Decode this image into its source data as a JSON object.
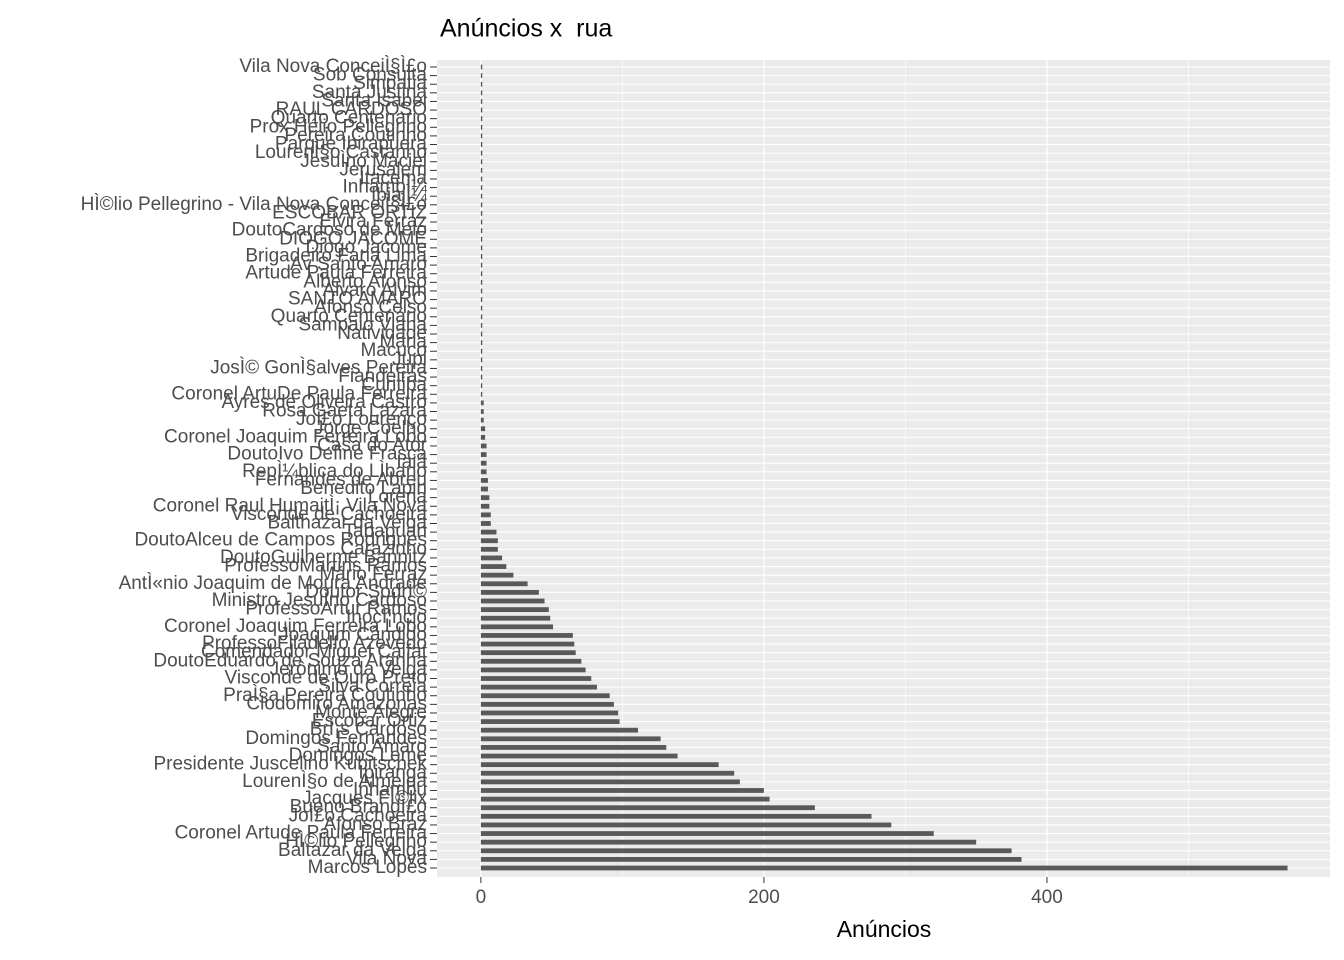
{
  "chart_data": {
    "type": "barh",
    "title": "Anúncios x  rua",
    "xlabel": "Anúncios",
    "categories": [
      "Vila Nova ConceiÌ§Ì£o",
      "Sob Consulta",
      "Simpatia",
      "Santa Justina",
      "Santa Isabel",
      "RAUL CARDOSO",
      "Quarto Centenario",
      "Prox Hélio Pellegrino",
      "Pereira Coutinho",
      "Parque Ibirapuera",
      "LourenÌ§o Castanho",
      "JesuÌno Maciel",
      "Jerusalem",
      "Itacema",
      "InhambÌ¼",
      "IbiajÌ¼",
      "HÌ©lio Pellegrino - Vila Nova ConceiÌ§Ì£o",
      "ESCOBAR ORTIZ",
      "Elvira Ferraz",
      "DoutoCardoso de Melo",
      "DIOGO JACOME",
      "Diogo Jacome",
      "Brigadeiro Faria Lima",
      "Av Santo Amaro",
      "Artude Paula Ferreira",
      "Alberto Afonso",
      "Alvaro Alvim",
      "SANTO AMARO",
      "Afonso Celso",
      "Quarto Centenário",
      "Sampaio Viana",
      "Natividade",
      "Maria",
      "Macuco",
      "Jupi",
      "JosÌ© GonÌ§alves Pereira",
      "Fiandeiras",
      "Curitiba",
      "Coronel ArtuDe Paula Ferreira",
      "Ayres de Oliveira Castro",
      "Rosa Gaeta Lazara",
      "JoÌ£o Lourenço",
      "Jorge Coelho",
      "Coronel Joaquim Ferreira Lobo",
      "Casa do Ator",
      "DoutoIvo Define Frasca",
      "Iaiá",
      "RepÌ¼blica do LÌbano",
      "Fernandes de Abreu",
      "Benedito Lapin",
      "Lorena",
      "Coronel Raul HumaitÌ¡ Vila Nova",
      "Visconde de Cachoeira",
      "Balthazar da Veiga",
      "Tabapuan",
      "DoutoAlceu de Campos Rodrigues",
      "Carazinho",
      "DoutoGuilherme Bannitz",
      "ProfessoMartins Ramos",
      "Mário Ferraz",
      "AntÌ«nio Joaquim de Moura Andrade",
      "Doutor SodrÌ©",
      "Ministro JesuÌno Cardoso",
      "ProfessoArtur Ramos",
      "InocÌ¦ncio",
      "Coronel Joaquim Ferreira Lobo",
      "Joaquim Cândido",
      "ProfessoFiladelfo Azevedo",
      "Comendador Miguel Calfat",
      "DoutoEduardo de Souza Aranha",
      "Jerônimo da Veiga",
      "Visconde de Ouro Preto",
      "Silva Correia",
      "PraÌ§a Pereira Coutinho",
      "Clodomiro Amazonas",
      "Monte Alegre",
      "Escobar Ortiz",
      "BrÌ¡s Cardoso",
      "Domingos Fernandes",
      "Santo Amaro",
      "Domingos Leme",
      "Presidente Juscelino Kubitschek",
      "Ipiranga",
      "LourenÌ§o de Almeida",
      "Inhambu",
      "Jacques FÌ©lix",
      "Bueno BrandÌ£o",
      "JoÌ£o Cachoeira",
      "Afonso Braz",
      "Coronel Artude Paula Ferreira",
      "HÌ©lio Pellegrino",
      "Baltazar da Veiga",
      "Vila Nova",
      "Marcos Lopes"
    ],
    "values": [
      1,
      1,
      1,
      1,
      1,
      1,
      1,
      1,
      1,
      1,
      1,
      1,
      1,
      1,
      1,
      1,
      1,
      1,
      1,
      1,
      1,
      1,
      1,
      1,
      1,
      1,
      1,
      1,
      1,
      1,
      1,
      1,
      1,
      1,
      1,
      1,
      1,
      1,
      1,
      2,
      2,
      2,
      3,
      3,
      4,
      4,
      4,
      4,
      5,
      5,
      6,
      6,
      7,
      7,
      11,
      12,
      12,
      15,
      18,
      23,
      33,
      41,
      45,
      48,
      49,
      51,
      65,
      66,
      67,
      71,
      74,
      78,
      82,
      91,
      94,
      97,
      98,
      111,
      127,
      131,
      139,
      168,
      179,
      183,
      200,
      204,
      236,
      276,
      290,
      320,
      350,
      375,
      382,
      570
    ],
    "color": "#595959",
    "xlim": [
      -31,
      600
    ],
    "xticks": [
      0,
      200,
      400
    ],
    "xminorticks": [
      100,
      300,
      500
    ],
    "grid": true
  }
}
